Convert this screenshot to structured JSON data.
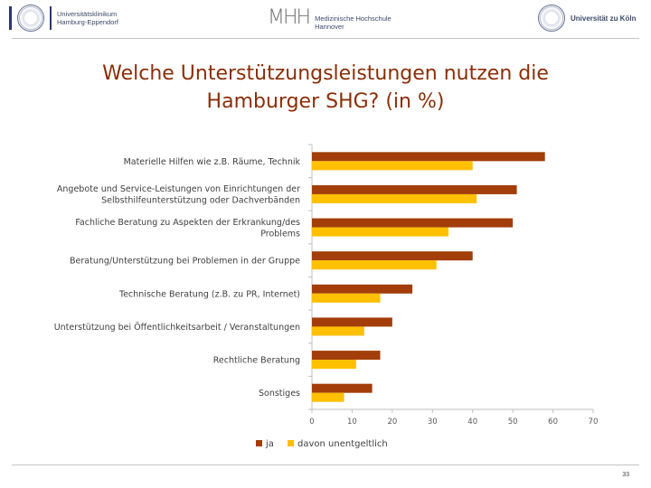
{
  "header": {
    "logo_left_line1": "Universitätsklinikum",
    "logo_left_line2": "Hamburg-Eppendorf",
    "logo_center_mark": "MHH",
    "logo_center_line1": "Medizinische Hochschule",
    "logo_center_line2": "Hannover",
    "logo_right_text": "Universität zu Köln"
  },
  "slide": {
    "title_line1": "Welche Unterstützungsleistungen nutzen die",
    "title_line2": "Hamburger SHG? (in %)",
    "page_number": "33"
  },
  "colors": {
    "title": "#8b2e07",
    "series_ja": "#a33e0a",
    "series_unentgeltlich": "#ffc000"
  },
  "chart_data": {
    "type": "bar",
    "orientation": "horizontal",
    "categories": [
      [
        "Materielle Hilfen wie z.B. Räume, Technik"
      ],
      [
        "Angebote und Service-Leistungen von Einrichtungen der",
        "Selbsthilfeunterstützung oder Dachverbänden"
      ],
      [
        "Fachliche Beratung zu Aspekten der Erkrankung/des",
        "Problems"
      ],
      [
        "Beratung/Unterstützung bei Problemen in der Gruppe"
      ],
      [
        "Technische Beratung (z.B. zu PR, Internet)"
      ],
      [
        "Unterstützung bei Öffentlichkeitsarbeit / Veranstaltungen"
      ],
      [
        "Rechtliche Beratung"
      ],
      [
        "Sonstiges"
      ]
    ],
    "series": [
      {
        "name": "ja",
        "values": [
          58,
          51,
          50,
          40,
          25,
          20,
          17,
          15
        ]
      },
      {
        "name": "davon unentgeltlich",
        "values": [
          40,
          41,
          34,
          31,
          17,
          13,
          11,
          8
        ]
      }
    ],
    "xlim": [
      0,
      70
    ],
    "xticks": [
      0,
      10,
      20,
      30,
      40,
      50,
      60,
      70
    ],
    "grid": false,
    "legend": "bottom"
  }
}
